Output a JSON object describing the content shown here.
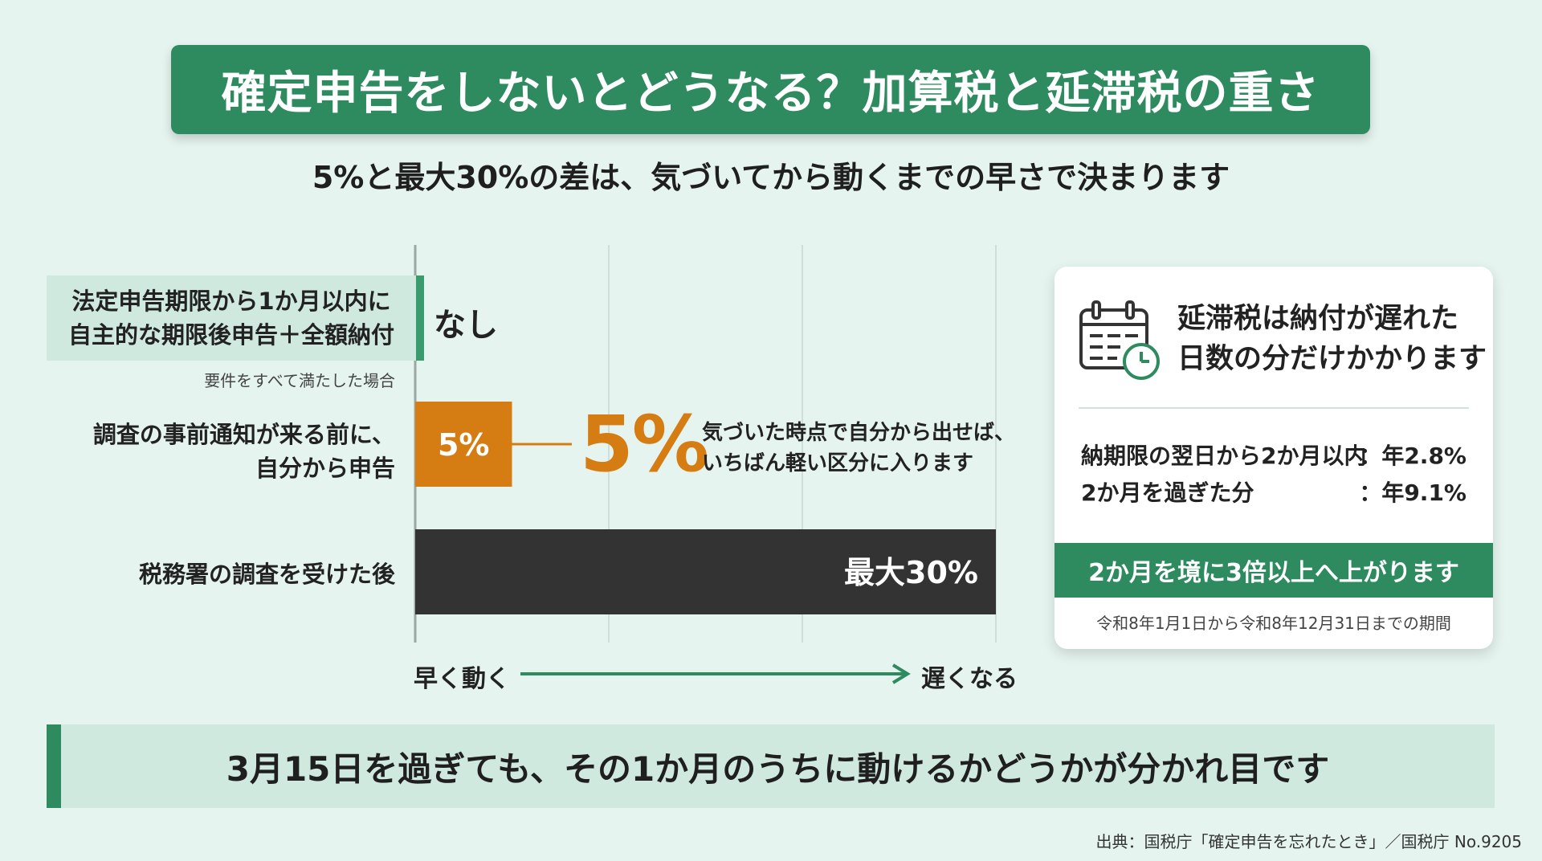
{
  "title": "確定申告をしないとどうなる？加算税と延滞税の重さ",
  "subtitle": "5%と最大30%の差は、気づいてから動くまでの早さで決まります",
  "chart_data": {
    "type": "bar",
    "orientation": "horizontal",
    "categories": [
      "法定申告期限から1か月以内に自主的な期限後申告＋全額納付",
      "調査の事前通知が来る前に、自分から申告",
      "税務署の調査を受けた後"
    ],
    "values": [
      0,
      5,
      30
    ],
    "value_labels": [
      "なし",
      "5%",
      "最大30%"
    ],
    "ylim": [
      0,
      30
    ],
    "grid": true,
    "colors": [
      "#cfe9df",
      "#d57c12",
      "#333333"
    ]
  },
  "rows": {
    "r1_line1": "法定申告期限から1か月以内に",
    "r1_line2": "自主的な期限後申告＋全額納付",
    "r1_note": "要件をすべて満たした場合",
    "r1_value": "なし",
    "r2_line1": "調査の事前通知が来る前に、",
    "r2_line2": "自分から申告",
    "r2_bar_label": "5%",
    "r2_big": "5%",
    "r2_note1": "気づいた時点で自分から出せば、",
    "r2_note2": "いちばん軽い区分に入ります",
    "r3_label": "税務署の調査を受けた後",
    "r3_bar_label": "最大30%"
  },
  "axis": {
    "left": "早く動く",
    "right": "遅くなる"
  },
  "card": {
    "icon": "calendar-clock-icon",
    "title1": "延滞税は納付が遅れた",
    "title2": "日数の分だけかかります",
    "rate1_label": "納期限の翌日から2か月以内",
    "rate1_value": "：年2.8%",
    "rate2_label": "2か月を過ぎた分",
    "rate2_value": "：年9.1%",
    "band": "2か月を境に3倍以上へ上がります",
    "period": "令和8年1月1日から令和8年12月31日までの期間"
  },
  "bottom_banner": "3月15日を過ぎても、その1か月のうちに動けるかどうかが分かれ目です",
  "source": "出典：国税庁「確定申告を忘れたとき」／国税庁 No.9205",
  "colors": {
    "accent": "#2e8a5f",
    "orange": "#d57c12",
    "dark": "#333333",
    "bg": "#e6f4ef"
  }
}
